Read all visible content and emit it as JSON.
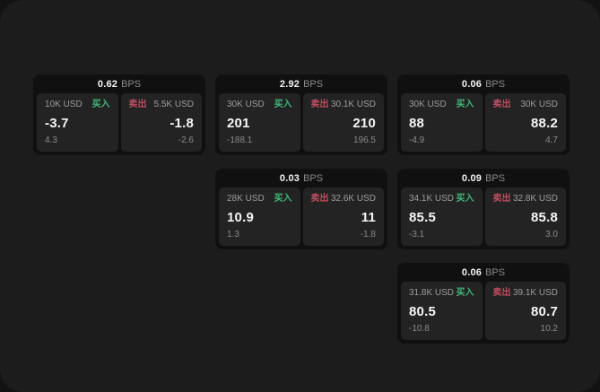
{
  "labels": {
    "bps": "BPS",
    "buy": "买入",
    "sell": "卖出"
  },
  "colors": {
    "buy_green": "#41b878",
    "sell_red": "#bf4d5f",
    "window_bg": "#1c1c1c",
    "card_bg": "#101010",
    "panel_bg": "#232323"
  },
  "cards": [
    {
      "bps": "0.62",
      "buy": {
        "amount": "10K USD",
        "price": "-3.7",
        "change": "4.3"
      },
      "sell": {
        "amount": "5.5K USD",
        "price": "-1.8",
        "change": "-2.6"
      }
    },
    {
      "bps": "2.92",
      "buy": {
        "amount": "30K USD",
        "price": "201",
        "change": "-188.1"
      },
      "sell": {
        "amount": "30.1K USD",
        "price": "210",
        "change": "196.5"
      }
    },
    {
      "bps": "0.06",
      "buy": {
        "amount": "30K USD",
        "price": "88",
        "change": "-4.9"
      },
      "sell": {
        "amount": "30K USD",
        "price": "88.2",
        "change": "4.7"
      }
    },
    {
      "bps": "0.03",
      "buy": {
        "amount": "28K USD",
        "price": "10.9",
        "change": "1.3"
      },
      "sell": {
        "amount": "32.6K USD",
        "price": "11",
        "change": "-1.8"
      }
    },
    {
      "bps": "0.09",
      "buy": {
        "amount": "34.1K USD",
        "price": "85.5",
        "change": "-3.1"
      },
      "sell": {
        "amount": "32.8K USD",
        "price": "85.8",
        "change": "3.0"
      }
    },
    {
      "bps": "0.06",
      "buy": {
        "amount": "31.8K USD",
        "price": "80.5",
        "change": "-10.8"
      },
      "sell": {
        "amount": "39.1K USD",
        "price": "80.7",
        "change": "10.2"
      }
    }
  ]
}
